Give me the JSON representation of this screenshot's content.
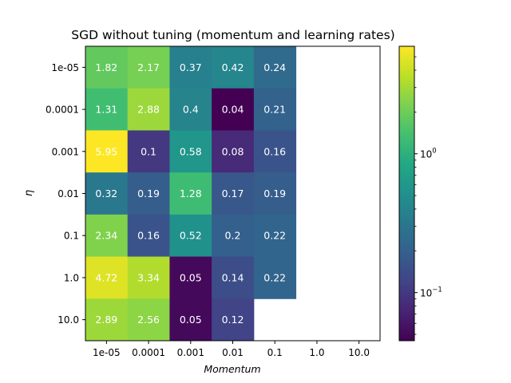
{
  "chart_data": {
    "type": "heatmap",
    "title": "SGD without tuning (momentum and learning rates)",
    "xlabel": "Momentum",
    "ylabel": "η",
    "x_categories": [
      "1e-05",
      "0.0001",
      "0.001",
      "0.01",
      "0.1",
      "1.0",
      "10.0"
    ],
    "y_categories": [
      "1e-05",
      "0.0001",
      "0.001",
      "0.01",
      "0.1",
      "1.0",
      "10.0"
    ],
    "values": [
      [
        1.82,
        2.17,
        0.37,
        0.42,
        0.24,
        null,
        null
      ],
      [
        1.31,
        2.88,
        0.4,
        0.04,
        0.21,
        null,
        null
      ],
      [
        5.95,
        0.1,
        0.58,
        0.08,
        0.16,
        null,
        null
      ],
      [
        0.32,
        0.19,
        1.28,
        0.17,
        0.19,
        null,
        null
      ],
      [
        2.34,
        0.16,
        0.52,
        0.2,
        0.22,
        null,
        null
      ],
      [
        4.72,
        3.34,
        0.05,
        0.14,
        0.22,
        null,
        null
      ],
      [
        2.89,
        2.56,
        0.05,
        0.12,
        null,
        null,
        null
      ]
    ],
    "colorbar": {
      "scale": "log",
      "colormap": "viridis",
      "range": [
        0.045,
        5.95
      ],
      "ticks": [
        {
          "value": 1,
          "label": "10^0",
          "base": "10",
          "exp": "0"
        },
        {
          "value": 0.1,
          "label": "10^-1",
          "base": "10",
          "exp": "−1"
        }
      ]
    }
  }
}
